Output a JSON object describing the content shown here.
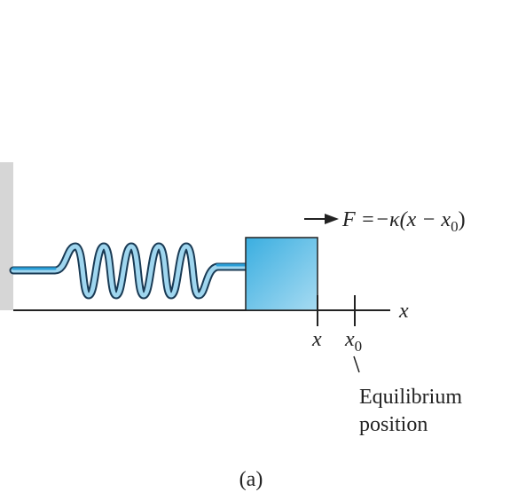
{
  "force_label": {
    "main": "F =−κ(x − x",
    "subscript": "0",
    "end": ")"
  },
  "axis_label": "x",
  "ticks": [
    {
      "main": "x"
    },
    {
      "main": "x",
      "subscript": "0"
    }
  ],
  "equilibrium_label": [
    "Equilibrium",
    "position"
  ],
  "caption": "(a)"
}
